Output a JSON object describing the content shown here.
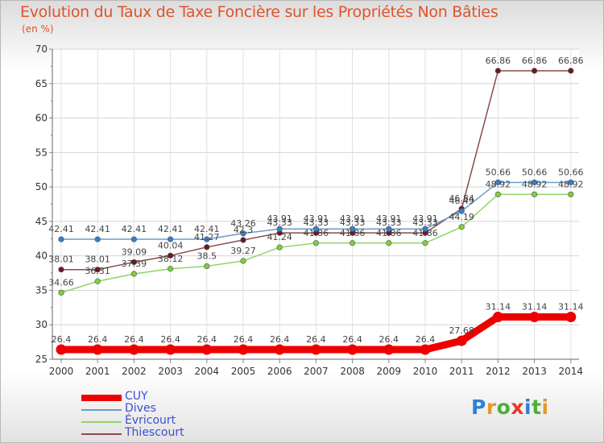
{
  "header": {
    "title": "Evolution du Taux de Taxe Foncière sur les Propriétés Non Bâties",
    "unit": "(en %)"
  },
  "logo": {
    "text": "Proxiti",
    "colors": [
      "#2f7fd6",
      "#e59a2c",
      "#4fae3a",
      "#e53b2a",
      "#2f7fd6",
      "#4fae3a",
      "#e59a2c"
    ]
  },
  "chart_data": {
    "type": "line",
    "title": "Evolution du Taux de Taxe Foncière sur les Propriétés Non Bâties",
    "ylabel": "(en %)",
    "xlabel": "",
    "ylim": [
      25,
      70
    ],
    "yticks": [
      25,
      30,
      35,
      40,
      45,
      50,
      55,
      60,
      65,
      70
    ],
    "categories": [
      "2000",
      "2001",
      "2002",
      "2003",
      "2004",
      "2005",
      "2006",
      "2007",
      "2008",
      "2009",
      "2010",
      "2011",
      "2012",
      "2013",
      "2014"
    ],
    "series": [
      {
        "name": "CUY",
        "color": "#ee0000",
        "marker": "#ee0000",
        "values": [
          26.4,
          26.4,
          26.4,
          26.4,
          26.4,
          26.4,
          26.4,
          26.4,
          26.4,
          26.4,
          26.4,
          27.68,
          31.14,
          31.14,
          31.14
        ],
        "labels": [
          "26.4",
          "26.4",
          "26.4",
          "26.4",
          "26.4",
          "26.4",
          "26.4",
          "26.4",
          "26.4",
          "26.4",
          "26.4",
          "27.68",
          "31.14",
          "31.14",
          "31.14"
        ]
      },
      {
        "name": "Dives",
        "color": "#6a9cc9",
        "marker": "#2f7fd6",
        "values": [
          42.41,
          42.41,
          42.41,
          42.41,
          42.41,
          43.26,
          43.91,
          43.91,
          43.91,
          43.91,
          43.91,
          46.49,
          50.66,
          50.66,
          50.66
        ],
        "labels": [
          "42.41",
          "42.41",
          "42.41",
          "42.41",
          "42.41",
          "43.26",
          "43.91",
          "43.91",
          "43.91",
          "43.91",
          "43.91",
          "46.49",
          "50.66",
          "50.66",
          "50.66"
        ]
      },
      {
        "name": "Évricourt",
        "color": "#8fd46a",
        "marker": "#7bd03a",
        "values": [
          34.66,
          36.31,
          37.39,
          38.12,
          38.5,
          39.27,
          41.24,
          41.86,
          41.86,
          41.86,
          41.86,
          44.19,
          48.92,
          48.92,
          48.92
        ],
        "labels": [
          "34.66",
          "36.31",
          "37.39",
          "38.12",
          "38.5",
          "39.27",
          "41.24",
          "41.86",
          "41.86",
          "41.86",
          "41.86",
          "44.19",
          "48.92",
          "48.92",
          "48.92"
        ]
      },
      {
        "name": "Thiescourt",
        "color": "#8a4b4b",
        "marker": "#6b1a22",
        "values": [
          38.01,
          38.01,
          39.09,
          40.04,
          41.27,
          42.3,
          43.33,
          43.33,
          43.33,
          43.33,
          43.33,
          46.84,
          66.86,
          66.86,
          66.86
        ],
        "labels": [
          "38.01",
          "38.01",
          "39.09",
          "40.04",
          "41.27",
          "42.3",
          "43.33",
          "43.33",
          "43.33",
          "43.33",
          "43.33",
          "46.84",
          "66.86",
          "66.86",
          "66.86"
        ]
      }
    ],
    "grid": true,
    "legend": "bottom-left"
  }
}
